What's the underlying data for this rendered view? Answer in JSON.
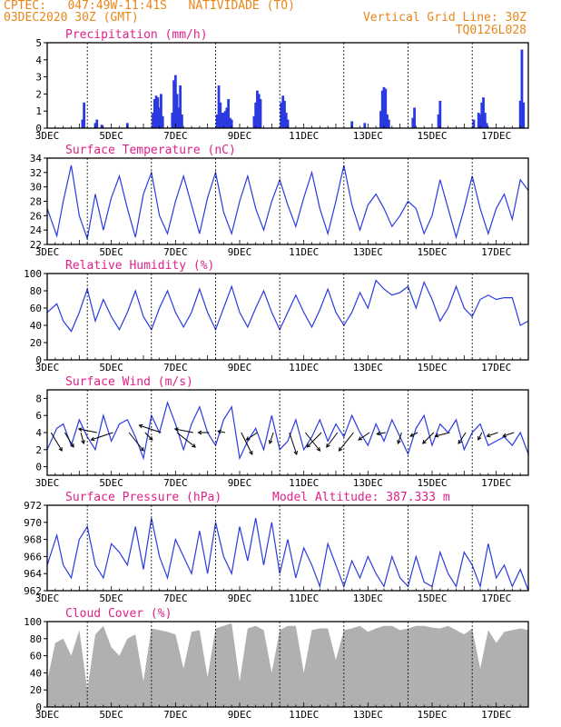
{
  "header": {
    "line1": "CPTEC:   047:49W-11:41S   NATIVIDADE (TO)",
    "line2": "03DEC2020 30Z (GMT)",
    "grid_note": "Vertical Grid Line: 30Z",
    "code": "TQ0126L028"
  },
  "colors": {
    "header": "#e8861a",
    "title": "#e0208a",
    "line": "#2a3ae0",
    "bar": "#2a3ae0",
    "cloud": "#b0b0b0",
    "arrow": "#000000",
    "grid": "#000000"
  },
  "x_axis": {
    "labels": [
      "3DEC",
      "5DEC",
      "7DEC",
      "9DEC",
      "11DEC",
      "13DEC",
      "15DEC",
      "17DEC"
    ],
    "label_days": [
      3,
      5,
      7,
      9,
      11,
      13,
      15,
      17
    ],
    "range_days": [
      3,
      18
    ],
    "grid_days": [
      4.25,
      6.25,
      8.25,
      10.25,
      12.25,
      14.25,
      16.25
    ]
  },
  "chart_data": [
    {
      "id": "precip",
      "type": "bar",
      "title": "Precipitation (mm/h)",
      "ylim": [
        0,
        5
      ],
      "yticks": [
        0,
        1,
        2,
        3,
        4,
        5
      ],
      "x_unit": "day of December 2020 (GMT)",
      "x": [
        4.1,
        4.15,
        4.5,
        4.55,
        4.7,
        5.5,
        6.3,
        6.35,
        6.4,
        6.45,
        6.5,
        6.55,
        6.6,
        6.9,
        6.95,
        7.0,
        7.05,
        7.1,
        7.15,
        7.2,
        8.3,
        8.35,
        8.4,
        8.45,
        8.5,
        8.55,
        8.6,
        8.65,
        8.7,
        8.75,
        9.45,
        9.5,
        9.55,
        9.6,
        9.65,
        10.3,
        10.35,
        10.4,
        10.45,
        10.5,
        12.5,
        12.9,
        13.4,
        13.45,
        13.5,
        13.55,
        13.6,
        13.65,
        14.4,
        14.45,
        15.2,
        15.25,
        16.3,
        16.45,
        16.5,
        16.55,
        16.6,
        16.65,
        16.7,
        17.75,
        17.8,
        17.85
      ],
      "values": [
        0.5,
        1.5,
        0.3,
        0.5,
        0.2,
        0.3,
        0.9,
        1.7,
        1.9,
        1.8,
        1.2,
        2.0,
        0.7,
        0.9,
        2.8,
        3.1,
        2.0,
        1.2,
        2.5,
        0.8,
        0.8,
        2.5,
        1.5,
        0.9,
        0.9,
        1.0,
        1.2,
        1.7,
        0.6,
        0.5,
        0.7,
        1.5,
        2.2,
        2.0,
        1.7,
        1.5,
        1.9,
        1.6,
        0.9,
        0.5,
        0.4,
        0.3,
        1.0,
        2.2,
        2.4,
        2.3,
        0.8,
        0.5,
        0.6,
        1.2,
        0.8,
        1.6,
        0.5,
        0.9,
        0.8,
        1.5,
        1.8,
        0.9,
        0.3,
        1.6,
        4.6,
        1.5
      ]
    },
    {
      "id": "temp",
      "type": "line",
      "title": "Surface Temperature (nC)",
      "ylim": [
        22,
        34
      ],
      "yticks": [
        22,
        24,
        26,
        28,
        30,
        32,
        34
      ],
      "x_unit": "day of December 2020 (GMT)",
      "x": [
        3.0,
        3.3,
        3.5,
        3.75,
        4.0,
        4.25,
        4.5,
        4.75,
        5.0,
        5.25,
        5.5,
        5.75,
        6.0,
        6.25,
        6.5,
        6.75,
        7.0,
        7.25,
        7.5,
        7.75,
        8.0,
        8.25,
        8.5,
        8.75,
        9.0,
        9.25,
        9.5,
        9.75,
        10.0,
        10.25,
        10.5,
        10.75,
        11.0,
        11.25,
        11.5,
        11.75,
        12.0,
        12.25,
        12.5,
        12.75,
        13.0,
        13.25,
        13.5,
        13.75,
        14.0,
        14.25,
        14.5,
        14.75,
        15.0,
        15.25,
        15.5,
        15.75,
        16.0,
        16.25,
        16.5,
        16.75,
        17.0,
        17.25,
        17.5,
        17.75,
        18.0
      ],
      "values": [
        27.0,
        23.2,
        28.0,
        33.0,
        26.0,
        22.8,
        29.0,
        24.0,
        28.5,
        31.5,
        27.0,
        23.0,
        29.0,
        32.0,
        26.0,
        23.5,
        28.0,
        31.5,
        27.5,
        23.5,
        28.5,
        32.0,
        26.5,
        23.5,
        28.0,
        31.5,
        27.0,
        24.0,
        28.0,
        31.0,
        27.5,
        24.5,
        28.5,
        32.0,
        27.0,
        23.5,
        28.0,
        33.0,
        27.5,
        24.0,
        27.5,
        29.0,
        27.0,
        24.5,
        26.0,
        28.0,
        27.0,
        23.5,
        26.0,
        31.0,
        27.0,
        23.0,
        27.0,
        31.5,
        27.0,
        23.5,
        27.0,
        29.0,
        25.5,
        31.0,
        29.5
      ]
    },
    {
      "id": "rh",
      "type": "line",
      "title": "Relative Humidity (%)",
      "ylim": [
        0,
        100
      ],
      "yticks": [
        0,
        20,
        40,
        60,
        80,
        100
      ],
      "x_unit": "day of December 2020 (GMT)",
      "x": [
        3.0,
        3.3,
        3.5,
        3.75,
        4.0,
        4.25,
        4.5,
        4.75,
        5.0,
        5.25,
        5.5,
        5.75,
        6.0,
        6.25,
        6.5,
        6.75,
        7.0,
        7.25,
        7.5,
        7.75,
        8.0,
        8.25,
        8.5,
        8.75,
        9.0,
        9.25,
        9.5,
        9.75,
        10.0,
        10.25,
        10.5,
        10.75,
        11.0,
        11.25,
        11.5,
        11.75,
        12.0,
        12.25,
        12.5,
        12.75,
        13.0,
        13.25,
        13.5,
        13.75,
        14.0,
        14.25,
        14.5,
        14.75,
        15.0,
        15.25,
        15.5,
        15.75,
        16.0,
        16.25,
        16.5,
        16.75,
        17.0,
        17.25,
        17.5,
        17.75,
        18.0
      ],
      "values": [
        55.0,
        65.0,
        45.0,
        33.0,
        55.0,
        82.0,
        45.0,
        70.0,
        50.0,
        35.0,
        55.0,
        80.0,
        50.0,
        35.0,
        60.0,
        80.0,
        55.0,
        38.0,
        55.0,
        82.0,
        55.0,
        35.0,
        60.0,
        85.0,
        55.0,
        38.0,
        60.0,
        80.0,
        55.0,
        35.0,
        55.0,
        75.0,
        55.0,
        38.0,
        58.0,
        82.0,
        55.0,
        40.0,
        55.0,
        78.0,
        60.0,
        92.0,
        82.0,
        75.0,
        78.0,
        85.0,
        60.0,
        90.0,
        70.0,
        45.0,
        60.0,
        85.0,
        60.0,
        50.0,
        70.0,
        75.0,
        70.0,
        72.0,
        72.0,
        40.0,
        45.0
      ]
    },
    {
      "id": "wind",
      "type": "line",
      "title": "Surface Wind (m/s)",
      "ylim": [
        -1,
        9
      ],
      "yticks": [
        0,
        2,
        4,
        6,
        8
      ],
      "x_unit": "day of December 2020 (GMT)",
      "x": [
        3.0,
        3.3,
        3.5,
        3.75,
        4.0,
        4.25,
        4.5,
        4.75,
        5.0,
        5.25,
        5.5,
        5.75,
        6.0,
        6.25,
        6.5,
        6.75,
        7.0,
        7.25,
        7.5,
        7.75,
        8.0,
        8.25,
        8.5,
        8.75,
        9.0,
        9.25,
        9.5,
        9.75,
        10.0,
        10.25,
        10.5,
        10.75,
        11.0,
        11.25,
        11.5,
        11.75,
        12.0,
        12.25,
        12.5,
        12.75,
        13.0,
        13.25,
        13.5,
        13.75,
        14.0,
        14.25,
        14.5,
        14.75,
        15.0,
        15.25,
        15.5,
        15.75,
        16.0,
        16.25,
        16.5,
        16.75,
        17.0,
        17.25,
        17.5,
        17.75,
        18.0
      ],
      "values": [
        2.0,
        4.5,
        5.0,
        2.5,
        5.5,
        3.5,
        2.0,
        6.0,
        3.0,
        5.0,
        5.5,
        3.5,
        1.0,
        6.0,
        4.0,
        7.5,
        5.0,
        2.0,
        5.0,
        7.0,
        4.0,
        2.5,
        5.5,
        7.0,
        1.0,
        3.0,
        4.5,
        2.0,
        6.0,
        2.0,
        3.0,
        5.5,
        2.0,
        3.5,
        5.5,
        3.0,
        5.0,
        3.5,
        6.0,
        4.0,
        2.5,
        5.0,
        3.0,
        5.5,
        3.5,
        1.5,
        4.5,
        6.0,
        2.5,
        5.0,
        4.0,
        5.5,
        2.0,
        4.0,
        5.0,
        2.5,
        3.0,
        3.5,
        2.5,
        4.0,
        1.5
      ],
      "vector_x": [
        3.12,
        3.55,
        4.05,
        4.55,
        5.05,
        5.55,
        6.05,
        6.55,
        7.05,
        7.55,
        8.05,
        8.55,
        9.05,
        9.55,
        10.05,
        10.55,
        11.05,
        11.55,
        12.05,
        12.55,
        13.05,
        13.55,
        14.05,
        14.55,
        15.05,
        15.55,
        16.05,
        16.55,
        17.05,
        17.55
      ],
      "vector_u": [
        1.5,
        1.2,
        0.4,
        -2.5,
        -3.0,
        2.0,
        1.0,
        -3.0,
        2.5,
        -2.5,
        -1.5,
        -1.0,
        1.5,
        -1.5,
        -0.5,
        1.0,
        2.0,
        -2.0,
        -1.5,
        -2.0,
        -1.5,
        -1.2,
        -0.5,
        -1.0,
        -1.5,
        -2.0,
        -1.0,
        -0.5,
        -1.5,
        -1.5
      ],
      "vector_v": [
        -2.5,
        -2.0,
        -1.5,
        0.5,
        -1.0,
        -2.5,
        -1.0,
        1.0,
        -2.0,
        0.5,
        0.0,
        0.2,
        -3.0,
        -1.0,
        -1.5,
        -3.0,
        -2.5,
        -2.0,
        -2.0,
        -2.5,
        -1.0,
        -0.2,
        -1.5,
        -0.5,
        -1.5,
        -0.5,
        -1.5,
        -1.0,
        -0.5,
        -0.5
      ]
    },
    {
      "id": "pressure",
      "type": "line",
      "title": "Surface Pressure (hPa)",
      "subtitle": "Model Altitude: 387.333 m",
      "ylim": [
        962,
        972
      ],
      "yticks": [
        962,
        964,
        966,
        968,
        970,
        972
      ],
      "x_unit": "day of December 2020 (GMT)",
      "x": [
        3.0,
        3.3,
        3.5,
        3.75,
        4.0,
        4.25,
        4.5,
        4.75,
        5.0,
        5.25,
        5.5,
        5.75,
        6.0,
        6.25,
        6.5,
        6.75,
        7.0,
        7.25,
        7.5,
        7.75,
        8.0,
        8.25,
        8.5,
        8.75,
        9.0,
        9.25,
        9.5,
        9.75,
        10.0,
        10.25,
        10.5,
        10.75,
        11.0,
        11.25,
        11.5,
        11.75,
        12.0,
        12.25,
        12.5,
        12.75,
        13.0,
        13.25,
        13.5,
        13.75,
        14.0,
        14.25,
        14.5,
        14.75,
        15.0,
        15.25,
        15.5,
        15.75,
        16.0,
        16.25,
        16.5,
        16.75,
        17.0,
        17.25,
        17.5,
        17.75,
        18.0
      ],
      "values": [
        965.0,
        968.5,
        965.0,
        963.5,
        968.0,
        969.5,
        965.0,
        963.5,
        967.5,
        966.5,
        965.0,
        969.5,
        964.5,
        970.5,
        966.0,
        963.5,
        968.0,
        966.0,
        964.0,
        969.0,
        964.0,
        970.0,
        966.0,
        964.0,
        969.5,
        965.5,
        970.5,
        965.0,
        970.0,
        964.0,
        968.0,
        963.5,
        967.0,
        965.0,
        962.5,
        967.5,
        965.0,
        962.5,
        965.5,
        963.5,
        966.0,
        964.0,
        962.5,
        966.0,
        963.5,
        962.5,
        966.0,
        963.0,
        962.5,
        966.5,
        964.0,
        962.5,
        966.5,
        965.0,
        962.5,
        967.5,
        963.5,
        965.0,
        962.5,
        964.5,
        962.0
      ]
    },
    {
      "id": "cloud",
      "type": "area",
      "title": "Cloud Cover (%)",
      "ylim": [
        0,
        100
      ],
      "yticks": [
        0,
        20,
        40,
        60,
        80,
        100
      ],
      "x_unit": "day of December 2020 (GMT)",
      "x": [
        3.0,
        3.25,
        3.5,
        3.75,
        4.0,
        4.25,
        4.5,
        4.75,
        5.0,
        5.25,
        5.5,
        5.75,
        6.0,
        6.25,
        6.5,
        6.75,
        7.0,
        7.25,
        7.5,
        7.75,
        8.0,
        8.25,
        8.5,
        8.75,
        9.0,
        9.25,
        9.5,
        9.75,
        10.0,
        10.25,
        10.5,
        10.75,
        11.0,
        11.25,
        11.5,
        11.75,
        12.0,
        12.25,
        12.5,
        12.75,
        13.0,
        13.25,
        13.5,
        13.75,
        14.0,
        14.25,
        14.5,
        14.75,
        15.0,
        15.25,
        15.5,
        15.75,
        16.0,
        16.25,
        16.5,
        16.75,
        17.0,
        17.25,
        17.5,
        17.75,
        18.0
      ],
      "values": [
        30.0,
        75.0,
        80.0,
        60.0,
        90.0,
        20.0,
        85.0,
        95.0,
        70.0,
        60.0,
        80.0,
        85.0,
        30.0,
        92.0,
        90.0,
        88.0,
        85.0,
        45.0,
        88.0,
        90.0,
        35.0,
        92.0,
        95.0,
        98.0,
        30.0,
        92.0,
        95.0,
        90.0,
        40.0,
        90.0,
        95.0,
        95.0,
        40.0,
        90.0,
        92.0,
        92.0,
        55.0,
        90.0,
        92.0,
        95.0,
        88.0,
        92.0,
        95.0,
        95.0,
        90.0,
        92.0,
        95.0,
        95.0,
        93.0,
        92.0,
        95.0,
        90.0,
        85.0,
        92.0,
        45.0,
        90.0,
        75.0,
        88.0,
        90.0,
        92.0,
        90.0
      ]
    }
  ]
}
